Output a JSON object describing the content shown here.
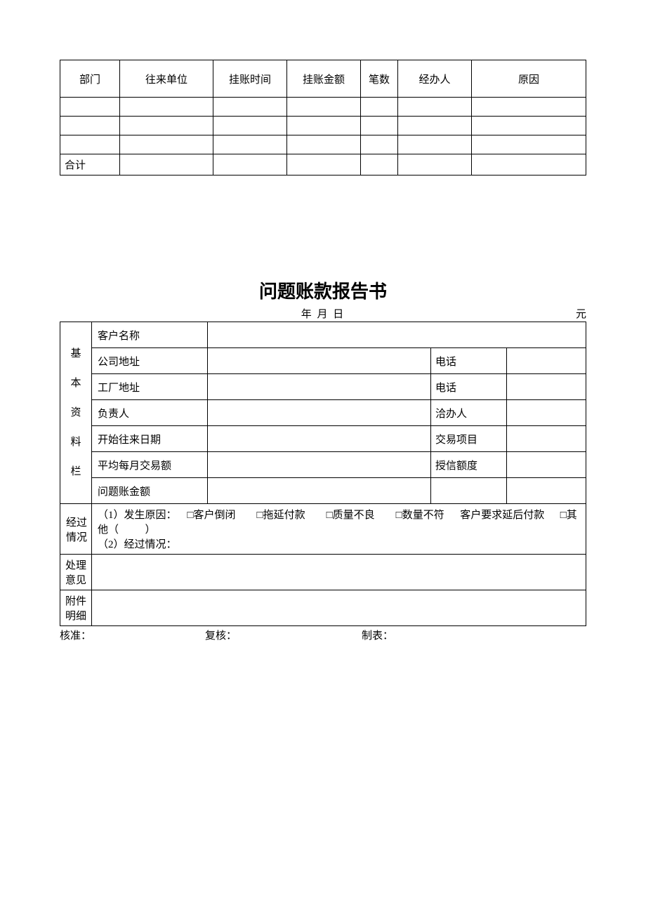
{
  "table1": {
    "headers": {
      "dept": "部门",
      "unit": "往来单位",
      "time": "挂账时间",
      "amount": "挂账金额",
      "count": "笔数",
      "person": "经办人",
      "reason": "原因"
    },
    "rows": [
      {
        "dept": "",
        "unit": "",
        "time": "",
        "amount": "",
        "count": "",
        "person": "",
        "reason": ""
      },
      {
        "dept": "",
        "unit": "",
        "time": "",
        "amount": "",
        "count": "",
        "person": "",
        "reason": ""
      },
      {
        "dept": "",
        "unit": "",
        "time": "",
        "amount": "",
        "count": "",
        "person": "",
        "reason": ""
      }
    ],
    "total_label": "合计"
  },
  "title": "问题账款报告书",
  "date_line": "年    月    日",
  "unit_label": "元",
  "section_label": "基 本 资 料 栏",
  "t2": {
    "customer_name": "客户名称",
    "company_addr": "公司地址",
    "phone": "电话",
    "factory_addr": "工厂地址",
    "responsible": "负责人",
    "contact": "洽办人",
    "start_date": "开始往来日期",
    "trade_item": "交易项目",
    "avg_monthly": "平均每月交易额",
    "credit_limit": "授信额度",
    "problem_amount": "问题账金额",
    "process_label": "经过情况",
    "process_text": "（1）发生原因：    □客户倒闭        □拖延付款        □质量不良        □数量不符      客户要求延后付款      □其他（          ）\n（2）经过情况：",
    "opinion_label": "处理意见",
    "attach_label": "附件明细"
  },
  "footer": {
    "approve": "核准：",
    "review": "复核：",
    "prepare": "制表："
  }
}
